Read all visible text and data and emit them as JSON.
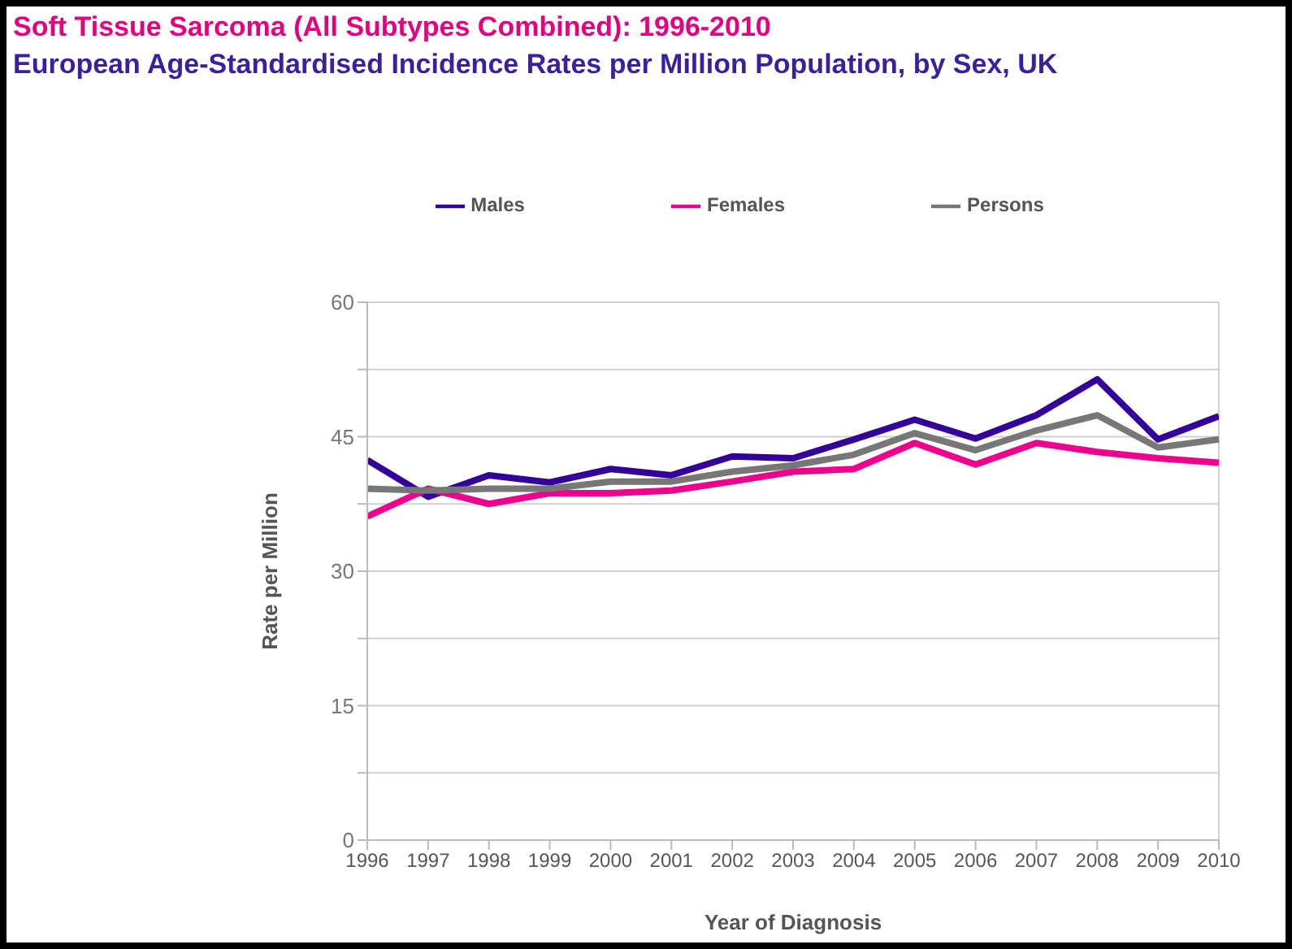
{
  "chart_data": {
    "type": "line",
    "title": "Soft Tissue Sarcoma (All Subtypes Combined): 1996-2010",
    "subtitle": "European Age-Standardised Incidence Rates per Million Population, by Sex, UK",
    "xlabel": "Year of Diagnosis",
    "ylabel": "Rate per Million",
    "x": [
      1996,
      1997,
      1998,
      1999,
      2000,
      2001,
      2002,
      2003,
      2004,
      2005,
      2006,
      2007,
      2008,
      2009,
      2010
    ],
    "series": [
      {
        "name": "Males",
        "color": "#330099",
        "values": [
          42.4,
          38.3,
          40.7,
          39.9,
          41.4,
          40.7,
          42.8,
          42.6,
          44.7,
          46.9,
          44.8,
          47.4,
          51.4,
          44.7,
          47.3
        ]
      },
      {
        "name": "Females",
        "color": "#ec008c",
        "values": [
          36.1,
          39.2,
          37.5,
          38.7,
          38.7,
          39.0,
          40.0,
          41.1,
          41.4,
          44.3,
          41.9,
          44.3,
          43.3,
          42.6,
          42.1
        ]
      },
      {
        "name": "Persons",
        "color": "#777777",
        "values": [
          39.2,
          39.0,
          39.2,
          39.2,
          40.0,
          40.0,
          41.1,
          41.8,
          43.0,
          45.4,
          43.5,
          45.7,
          47.4,
          43.8,
          44.7
        ]
      }
    ],
    "xlim": [
      1996,
      2010
    ],
    "xticks": [
      1996,
      1997,
      1998,
      1999,
      2000,
      2001,
      2002,
      2003,
      2004,
      2005,
      2006,
      2007,
      2008,
      2009,
      2010
    ],
    "ylim": [
      0,
      60
    ],
    "yticks": [
      0,
      {
        "value": 7.5,
        "label": null
      },
      15,
      {
        "value": 22.5,
        "label": null
      },
      30,
      {
        "value": 37.5,
        "label": null
      },
      45,
      {
        "value": 52.5,
        "label": null
      },
      60
    ],
    "grid": "y",
    "legend": "top",
    "marker": "none",
    "line_style": "solid"
  }
}
